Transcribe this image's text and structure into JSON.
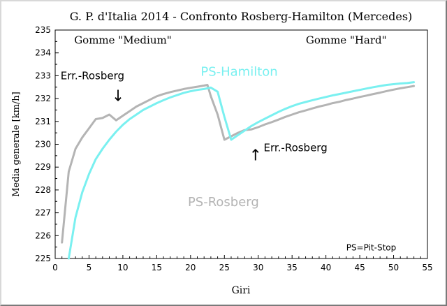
{
  "chart_data": {
    "type": "line",
    "title": "G. P. d'Italia 2014 - Confronto Rosberg-Hamilton (Mercedes)",
    "xlabel": "Giri",
    "ylabel": "Media generale [km/h]",
    "xlim": [
      0,
      55
    ],
    "ylim": [
      225,
      235
    ],
    "x_ticks": [
      0,
      5,
      10,
      15,
      20,
      25,
      30,
      35,
      40,
      45,
      50,
      55
    ],
    "y_ticks": [
      225,
      226,
      227,
      228,
      229,
      230,
      231,
      232,
      233,
      234,
      235
    ],
    "grid": false,
    "colors": {
      "rosberg": "#b4b4b4",
      "hamilton": "#7af0f0",
      "annotation": "#000000"
    },
    "series": [
      {
        "name": "Rosberg",
        "color": "#b4b4b4",
        "x": [
          1,
          2,
          3,
          4,
          5,
          6,
          7,
          8,
          9,
          10,
          11,
          12,
          13,
          14,
          15,
          16,
          17,
          18,
          19,
          20,
          21,
          22,
          22.5,
          23,
          24,
          25,
          26,
          27,
          28,
          29,
          30,
          31,
          32,
          33,
          34,
          35,
          36,
          37,
          38,
          39,
          40,
          41,
          42,
          43,
          44,
          45,
          46,
          47,
          48,
          49,
          50,
          51,
          52,
          53
        ],
        "y": [
          225.7,
          228.8,
          229.8,
          230.3,
          230.7,
          231.1,
          231.15,
          231.3,
          231.05,
          231.25,
          231.45,
          231.65,
          231.8,
          231.95,
          232.1,
          232.2,
          232.28,
          232.35,
          232.42,
          232.47,
          232.52,
          232.57,
          232.6,
          232.1,
          231.3,
          230.2,
          230.35,
          230.5,
          230.62,
          230.65,
          230.75,
          230.87,
          230.97,
          231.08,
          231.2,
          231.3,
          231.4,
          231.48,
          231.57,
          231.65,
          231.72,
          231.8,
          231.86,
          231.94,
          232.0,
          232.07,
          232.13,
          232.2,
          232.26,
          232.33,
          232.39,
          232.45,
          232.5,
          232.55
        ]
      },
      {
        "name": "Hamilton",
        "color": "#7af0f0",
        "x": [
          2,
          3,
          4,
          5,
          6,
          7,
          8,
          9,
          10,
          11,
          12,
          13,
          14,
          15,
          16,
          17,
          18,
          19,
          20,
          21,
          22,
          23,
          24,
          25,
          26,
          27,
          28,
          29,
          30,
          31,
          32,
          33,
          34,
          35,
          36,
          37,
          38,
          39,
          40,
          41,
          42,
          43,
          44,
          45,
          46,
          47,
          48,
          49,
          50,
          51,
          52,
          53
        ],
        "y": [
          225.0,
          226.8,
          227.9,
          228.7,
          229.35,
          229.8,
          230.2,
          230.55,
          230.85,
          231.1,
          231.3,
          231.5,
          231.65,
          231.8,
          231.93,
          232.05,
          232.15,
          232.25,
          232.32,
          232.38,
          232.42,
          232.48,
          232.3,
          231.2,
          230.2,
          230.4,
          230.6,
          230.8,
          230.97,
          231.12,
          231.27,
          231.42,
          231.55,
          231.67,
          231.77,
          231.85,
          231.93,
          232.0,
          232.07,
          232.14,
          232.2,
          232.26,
          232.32,
          232.38,
          232.44,
          232.5,
          232.55,
          232.6,
          232.63,
          232.66,
          232.68,
          232.72
        ]
      }
    ],
    "annotations": [
      {
        "text": "Gomme \"Medium\"",
        "x": 10,
        "y": 234.4,
        "color": "#000000",
        "font": "serif",
        "size": 15,
        "anchor": "middle"
      },
      {
        "text": "Gomme \"Hard\"",
        "x": 43,
        "y": 234.4,
        "color": "#000000",
        "font": "serif",
        "size": 15,
        "anchor": "middle"
      },
      {
        "text": "Err.-Rosberg",
        "x": 0.8,
        "y": 232.85,
        "color": "#000000",
        "font": "sans",
        "size": 15,
        "anchor": "start"
      },
      {
        "text": "↓",
        "x": 9.3,
        "y": 231.9,
        "color": "#000000",
        "font": "sans",
        "size": 22,
        "anchor": "middle"
      },
      {
        "text": "PS-Hamilton",
        "x": 21.5,
        "y": 233.0,
        "color": "#7af0f0",
        "font": "sans",
        "size": 18,
        "anchor": "start"
      },
      {
        "text": "↑",
        "x": 29.6,
        "y": 229.3,
        "color": "#000000",
        "font": "sans",
        "size": 22,
        "anchor": "middle"
      },
      {
        "text": "Err.-Rosberg",
        "x": 30.8,
        "y": 229.7,
        "color": "#000000",
        "font": "sans",
        "size": 15,
        "anchor": "start"
      },
      {
        "text": "PS-Rosberg",
        "x": 19.6,
        "y": 227.3,
        "color": "#b4b4b4",
        "font": "sans",
        "size": 18,
        "anchor": "start"
      },
      {
        "text": "PS=Pit-Stop",
        "x": 43,
        "y": 225.35,
        "color": "#000000",
        "font": "sans",
        "size": 12,
        "anchor": "start"
      }
    ]
  }
}
